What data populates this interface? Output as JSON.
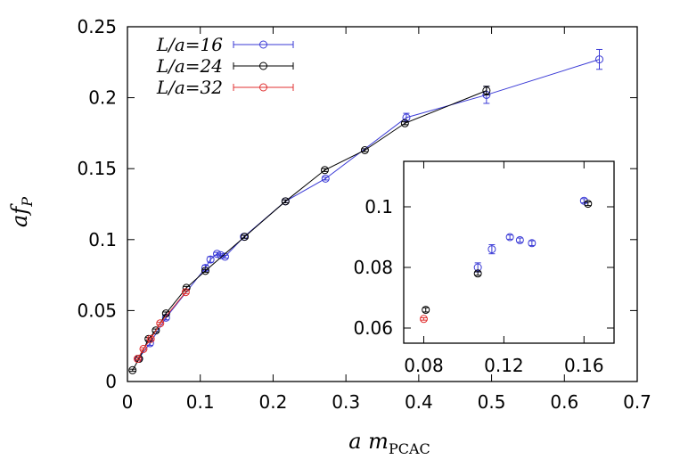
{
  "chart_data": [
    {
      "type": "scatter",
      "title": "",
      "xlabel": "a m_PCAC",
      "ylabel": "af_P",
      "xlim": [
        0,
        0.7
      ],
      "ylim": [
        0,
        0.25
      ],
      "xticks": [
        "0",
        "0.1",
        "0.2",
        "0.3",
        "0.4",
        "0.5",
        "0.6",
        "0.7"
      ],
      "yticks": [
        "0",
        "0.05",
        "0.1",
        "0.15",
        "0.2",
        "0.25"
      ],
      "legend_position": "top-left",
      "series": [
        {
          "name": "L/a=16",
          "color": "#3a3ad6",
          "line": true,
          "points": [
            {
              "x": 0.015,
              "y": 0.016,
              "yerr": 0.001
            },
            {
              "x": 0.031,
              "y": 0.027,
              "yerr": 0.0015
            },
            {
              "x": 0.053,
              "y": 0.045,
              "yerr": 0.0015
            },
            {
              "x": 0.107,
              "y": 0.08,
              "yerr": 0.002
            },
            {
              "x": 0.114,
              "y": 0.086,
              "yerr": 0.002
            },
            {
              "x": 0.123,
              "y": 0.09,
              "yerr": 0.001
            },
            {
              "x": 0.128,
              "y": 0.089,
              "yerr": 0.001
            },
            {
              "x": 0.134,
              "y": 0.088,
              "yerr": 0.001
            },
            {
              "x": 0.16,
              "y": 0.102,
              "yerr": 0.001
            },
            {
              "x": 0.217,
              "y": 0.127,
              "yerr": 0.001
            },
            {
              "x": 0.272,
              "y": 0.143,
              "yerr": 0.001
            },
            {
              "x": 0.383,
              "y": 0.186,
              "yerr": 0.003
            },
            {
              "x": 0.493,
              "y": 0.202,
              "yerr": 0.006
            },
            {
              "x": 0.648,
              "y": 0.227,
              "yerr": 0.007
            }
          ]
        },
        {
          "name": "L/a=24",
          "color": "#000000",
          "line": true,
          "points": [
            {
              "x": 0.007,
              "y": 0.008,
              "yerr": 0.0007
            },
            {
              "x": 0.016,
              "y": 0.016,
              "yerr": 0.0008
            },
            {
              "x": 0.029,
              "y": 0.03,
              "yerr": 0.001
            },
            {
              "x": 0.039,
              "y": 0.036,
              "yerr": 0.001
            },
            {
              "x": 0.053,
              "y": 0.048,
              "yerr": 0.001
            },
            {
              "x": 0.081,
              "y": 0.066,
              "yerr": 0.001
            },
            {
              "x": 0.107,
              "y": 0.078,
              "yerr": 0.001
            },
            {
              "x": 0.161,
              "y": 0.102,
              "yerr": 0.001
            },
            {
              "x": 0.217,
              "y": 0.127,
              "yerr": 0.001
            },
            {
              "x": 0.271,
              "y": 0.149,
              "yerr": 0.001
            },
            {
              "x": 0.326,
              "y": 0.163,
              "yerr": 0.001
            },
            {
              "x": 0.381,
              "y": 0.182,
              "yerr": 0.001
            },
            {
              "x": 0.493,
              "y": 0.205,
              "yerr": 0.003
            }
          ]
        },
        {
          "name": "L/a=32",
          "color": "#e03030",
          "line": true,
          "points": [
            {
              "x": 0.014,
              "y": 0.016,
              "yerr": 0.0008
            },
            {
              "x": 0.022,
              "y": 0.023,
              "yerr": 0.0008
            },
            {
              "x": 0.032,
              "y": 0.03,
              "yerr": 0.0008
            },
            {
              "x": 0.045,
              "y": 0.041,
              "yerr": 0.0008
            },
            {
              "x": 0.08,
              "y": 0.063,
              "yerr": 0.001
            }
          ]
        }
      ]
    },
    {
      "type": "scatter",
      "title": "",
      "xlim": [
        0.07,
        0.175
      ],
      "ylim": [
        0.055,
        0.115
      ],
      "xticks": [
        "0.08",
        "0.12",
        "0.16"
      ],
      "yticks": [
        "0.06",
        "0.08",
        "0.1"
      ],
      "series": [
        {
          "name": "L/a=16",
          "color": "#3a3ad6",
          "points": [
            {
              "x": 0.107,
              "y": 0.08,
              "yerr": 0.0015
            },
            {
              "x": 0.114,
              "y": 0.086,
              "yerr": 0.0015
            },
            {
              "x": 0.123,
              "y": 0.09,
              "yerr": 0.0007
            },
            {
              "x": 0.128,
              "y": 0.089,
              "yerr": 0.0007
            },
            {
              "x": 0.134,
              "y": 0.088,
              "yerr": 0.0008
            },
            {
              "x": 0.16,
              "y": 0.102,
              "yerr": 0.0007
            }
          ]
        },
        {
          "name": "L/a=24",
          "color": "#000000",
          "points": [
            {
              "x": 0.081,
              "y": 0.066,
              "yerr": 0.0007
            },
            {
              "x": 0.107,
              "y": 0.078,
              "yerr": 0.0006
            },
            {
              "x": 0.162,
              "y": 0.101,
              "yerr": 0.0006
            }
          ]
        },
        {
          "name": "L/a=32",
          "color": "#e03030",
          "points": [
            {
              "x": 0.08,
              "y": 0.063,
              "yerr": 0.0004
            }
          ]
        }
      ]
    }
  ]
}
